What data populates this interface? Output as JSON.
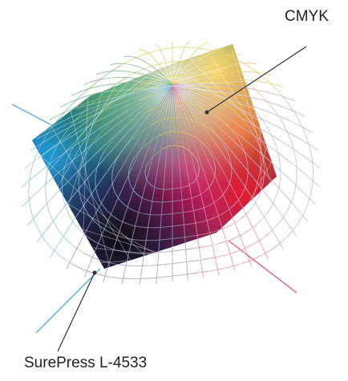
{
  "labels": {
    "cmyk": "CMYK",
    "surepress": "SurePress L-4533"
  },
  "colors": {
    "cyan": "#1f9ad6",
    "green": "#1a8a3c",
    "yellow": "#f2d21a",
    "orange": "#f28a1a",
    "red": "#e8192c",
    "magenta": "#d81b6a",
    "blue": "#2a3a9c",
    "black": "#111111",
    "white": "#ffffff",
    "axis_cyan": "#5ab4e0",
    "axis_magenta": "#e06a9a",
    "leader": "#333333"
  }
}
